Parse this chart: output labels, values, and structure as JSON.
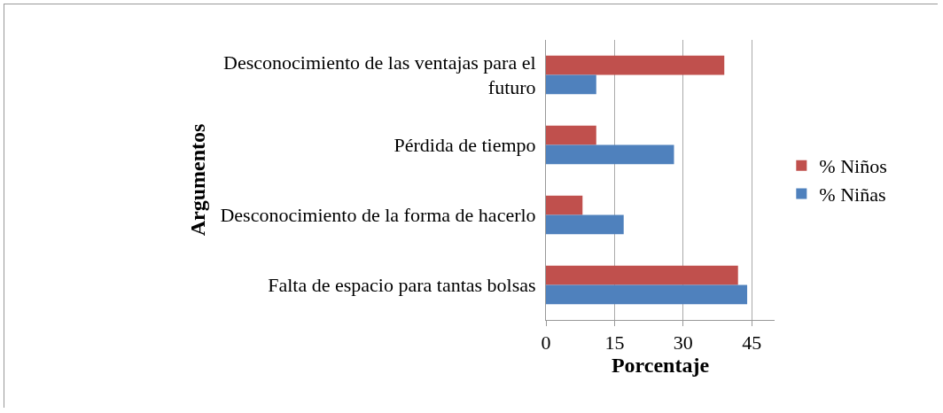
{
  "chart_data": {
    "type": "bar",
    "orientation": "horizontal",
    "xlabel": "Porcentaje",
    "ylabel": "Argumentos",
    "categories": [
      "Desconocimiento de las ventajas para el futuro",
      "Pérdida de tiempo",
      "Desconocimiento de la forma de hacerlo",
      "Falta de espacio para tantas bolsas"
    ],
    "series": [
      {
        "name": "% Niños",
        "color": "#c0504d",
        "values": [
          39,
          11,
          8,
          42
        ]
      },
      {
        "name": "% Niñas",
        "color": "#4f81bd",
        "values": [
          11,
          28,
          17,
          44
        ]
      }
    ],
    "xlim": [
      0,
      50
    ],
    "xticks": [
      0,
      15,
      30,
      45
    ],
    "grid": "x",
    "legend": "right"
  }
}
